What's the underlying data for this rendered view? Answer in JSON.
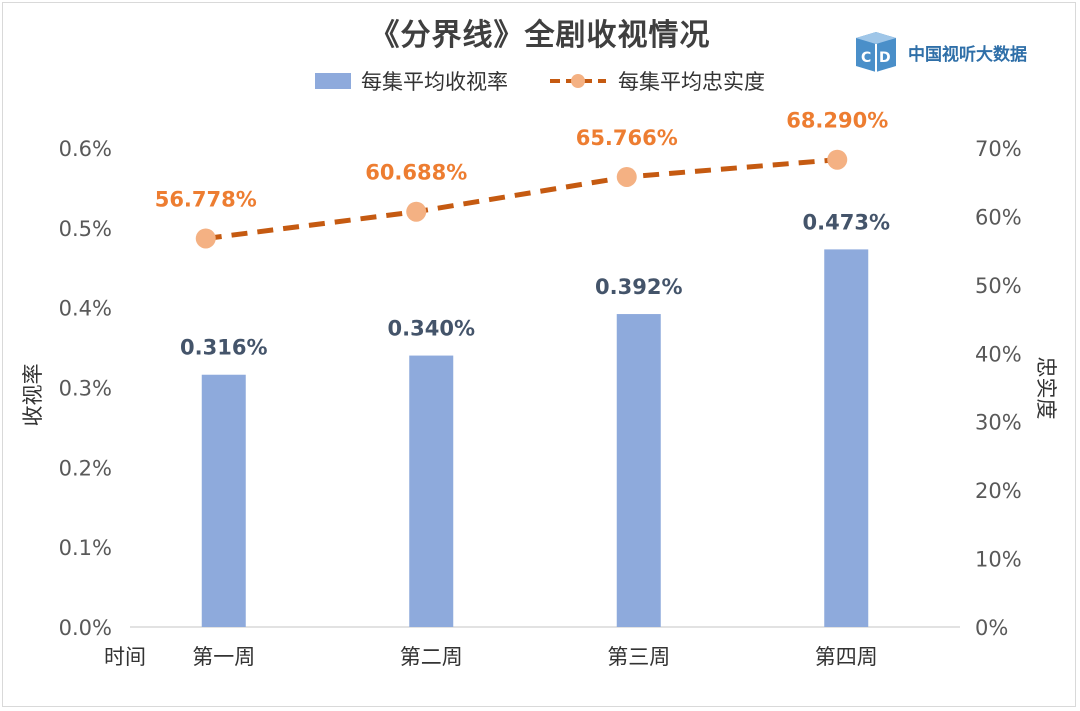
{
  "title": "《分界线》全剧收视情况",
  "logo": {
    "text": "中国视听大数据",
    "icon": "cdd-logo-icon"
  },
  "legend": {
    "bar_label": "每集平均收视率",
    "line_label": "每集平均忠实度"
  },
  "colors": {
    "bar": "#8eaadc",
    "line": "#c55a11",
    "marker": "#f4b183",
    "bar_label": "#44546a",
    "line_label": "#ed7d31",
    "axis_text": "#595959",
    "grid": "#d9d9d9"
  },
  "chart_data": {
    "type": "bar",
    "title": "《分界线》全剧收视情况",
    "xlabel": "时间",
    "ylabel": "收视率",
    "y2label": "忠实度",
    "categories": [
      "第一周",
      "第二周",
      "第三周",
      "第四周"
    ],
    "ylim": [
      0,
      0.6
    ],
    "y2lim": [
      0,
      70
    ],
    "yticks": [
      "0.0%",
      "0.1%",
      "0.2%",
      "0.3%",
      "0.4%",
      "0.5%",
      "0.6%"
    ],
    "y2ticks": [
      "0%",
      "10%",
      "20%",
      "30%",
      "40%",
      "50%",
      "60%",
      "70%"
    ],
    "grid": true,
    "legend_position": "top",
    "series": [
      {
        "name": "每集平均收视率",
        "kind": "bar",
        "axis": "left",
        "values": [
          0.316,
          0.34,
          0.392,
          0.473
        ],
        "labels": [
          "0.316%",
          "0.340%",
          "0.392%",
          "0.473%"
        ]
      },
      {
        "name": "每集平均忠实度",
        "kind": "line",
        "style": "dashed",
        "axis": "right",
        "values": [
          56.778,
          60.688,
          65.766,
          68.29
        ],
        "labels": [
          "56.778%",
          "60.688%",
          "65.766%",
          "68.290%"
        ]
      }
    ]
  }
}
